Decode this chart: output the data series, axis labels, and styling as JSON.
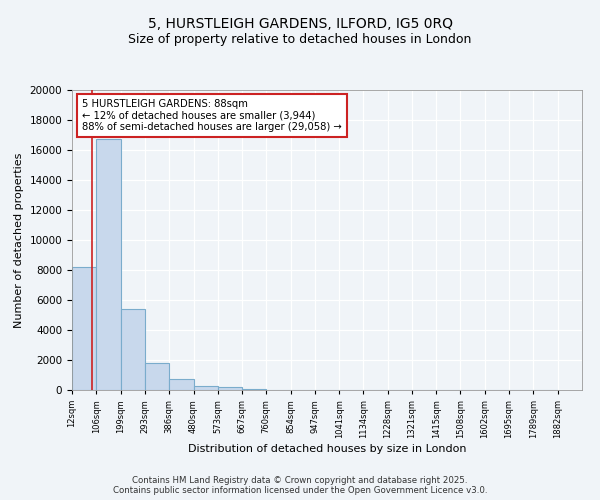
{
  "title1": "5, HURSTLEIGH GARDENS, ILFORD, IG5 0RQ",
  "title2": "Size of property relative to detached houses in London",
  "xlabel": "Distribution of detached houses by size in London",
  "ylabel": "Number of detached properties",
  "bin_edges": [
    12,
    106,
    199,
    293,
    386,
    480,
    573,
    667,
    760,
    854,
    947,
    1041,
    1134,
    1228,
    1321,
    1415,
    1508,
    1602,
    1695,
    1789,
    1882
  ],
  "bar_heights": [
    8200,
    16700,
    5400,
    1800,
    750,
    300,
    200,
    100,
    0,
    0,
    0,
    0,
    0,
    0,
    0,
    0,
    0,
    0,
    0,
    0
  ],
  "bar_color": "#c8d8ec",
  "bar_edge_color": "#7aaccc",
  "property_size": 88,
  "red_line_color": "#cc2222",
  "annotation_line1": "5 HURSTLEIGH GARDENS: 88sqm",
  "annotation_line2": "← 12% of detached houses are smaller (3,944)",
  "annotation_line3": "88% of semi-detached houses are larger (29,058) →",
  "annotation_box_color": "#ffffff",
  "annotation_box_edge": "#cc2222",
  "ylim": [
    0,
    20000
  ],
  "yticks": [
    0,
    2000,
    4000,
    6000,
    8000,
    10000,
    12000,
    14000,
    16000,
    18000,
    20000
  ],
  "background_color": "#f0f4f8",
  "plot_bg_color": "#f0f4f8",
  "grid_color": "#ffffff",
  "footer_text": "Contains HM Land Registry data © Crown copyright and database right 2025.\nContains public sector information licensed under the Open Government Licence v3.0."
}
